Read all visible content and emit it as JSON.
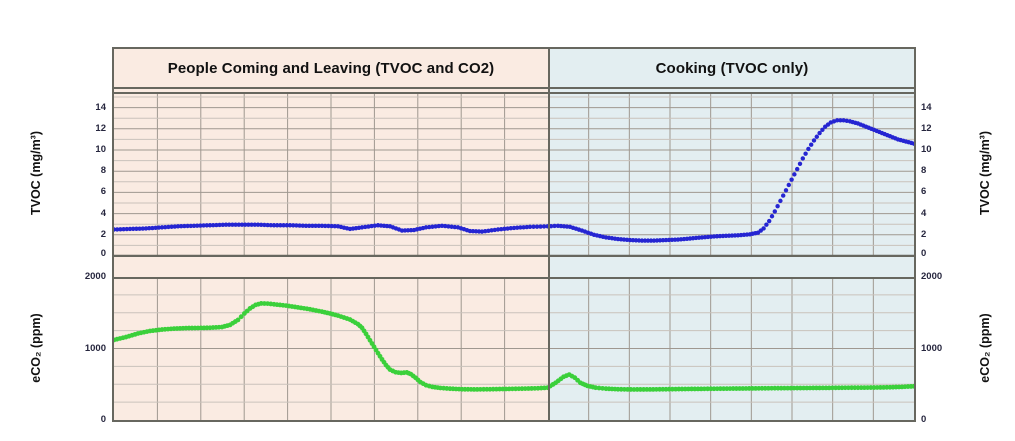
{
  "chart": {
    "regions": [
      {
        "label": "People Coming and Leaving (TVOC and CO2)",
        "bg": "#FAEBE2"
      },
      {
        "label": "Cooking (TVOC only)",
        "bg": "#E3EEF1"
      }
    ],
    "split_percent": 54.25,
    "axes": {
      "tvoc_label_left": "TVOC (mg/m³)",
      "tvoc_label_right": "TVOC (mg/m³)",
      "eco2_label_left": "eCO₂ (ppm)",
      "eco2_label_right": "eCO₂ (ppm)",
      "tvoc_ticks": [
        14,
        12,
        10,
        8,
        6,
        4,
        2,
        0
      ],
      "eco2_ticks": [
        2000,
        1000,
        0
      ]
    },
    "colors": {
      "tvoc_line": "#2525D2",
      "eco2_line": "#3BD03B",
      "border": "#67675F",
      "grid_major": "#9F9890",
      "grid_minor": "#C9C2BB",
      "header_text": "#111111",
      "tick_text": "#26263E"
    }
  },
  "chart_data": [
    {
      "type": "line",
      "title": "TVOC (mg/m³)",
      "ylabel": "TVOC (mg/m³)",
      "ylim": [
        -0.5,
        15.5
      ],
      "ytick_step": 2,
      "grid": "on",
      "x_unit": "percent_of_width",
      "region_annotations": [
        "People Coming and Leaving (TVOC and CO2)",
        "Cooking (TVOC only)"
      ],
      "region_split_x": 54.25,
      "series": [
        {
          "name": "TVOC",
          "points": [
            [
              0,
              2.5
            ],
            [
              2,
              2.55
            ],
            [
              4,
              2.6
            ],
            [
              6,
              2.7
            ],
            [
              8,
              2.8
            ],
            [
              10,
              2.85
            ],
            [
              12,
              2.9
            ],
            [
              14,
              2.95
            ],
            [
              16,
              2.95
            ],
            [
              18,
              2.95
            ],
            [
              20,
              2.9
            ],
            [
              22,
              2.9
            ],
            [
              24,
              2.85
            ],
            [
              26,
              2.85
            ],
            [
              28,
              2.8
            ],
            [
              29.5,
              2.55
            ],
            [
              31,
              2.7
            ],
            [
              33,
              2.9
            ],
            [
              34.5,
              2.8
            ],
            [
              36,
              2.4
            ],
            [
              37.5,
              2.45
            ],
            [
              39,
              2.7
            ],
            [
              41,
              2.85
            ],
            [
              43,
              2.7
            ],
            [
              44.5,
              2.35
            ],
            [
              46,
              2.3
            ],
            [
              48,
              2.5
            ],
            [
              50,
              2.65
            ],
            [
              52,
              2.75
            ],
            [
              54.2,
              2.8
            ],
            [
              55.5,
              2.85
            ],
            [
              57,
              2.75
            ],
            [
              58.5,
              2.4
            ],
            [
              60,
              2.0
            ],
            [
              61.5,
              1.75
            ],
            [
              63,
              1.6
            ],
            [
              64.5,
              1.5
            ],
            [
              66,
              1.45
            ],
            [
              67.5,
              1.45
            ],
            [
              69,
              1.5
            ],
            [
              70.5,
              1.55
            ],
            [
              72,
              1.65
            ],
            [
              73.5,
              1.75
            ],
            [
              75,
              1.85
            ],
            [
              76.5,
              1.9
            ],
            [
              78,
              1.95
            ],
            [
              79.5,
              2.05
            ],
            [
              80.5,
              2.2
            ],
            [
              81.2,
              2.6
            ],
            [
              81.9,
              3.3
            ],
            [
              82.6,
              4.2
            ],
            [
              83.3,
              5.2
            ],
            [
              84,
              6.2
            ],
            [
              84.7,
              7.2
            ],
            [
              85.4,
              8.2
            ],
            [
              86.1,
              9.2
            ],
            [
              86.8,
              10.1
            ],
            [
              87.5,
              10.9
            ],
            [
              88.2,
              11.6
            ],
            [
              88.9,
              12.2
            ],
            [
              89.6,
              12.6
            ],
            [
              90.4,
              12.8
            ],
            [
              91.2,
              12.8
            ],
            [
              92,
              12.7
            ],
            [
              93,
              12.5
            ],
            [
              94,
              12.2
            ],
            [
              95,
              11.9
            ],
            [
              96,
              11.6
            ],
            [
              97,
              11.3
            ],
            [
              98,
              11.0
            ],
            [
              99,
              10.8
            ],
            [
              100,
              10.6
            ]
          ]
        }
      ]
    },
    {
      "type": "line",
      "title": "eCO₂ (ppm)",
      "ylabel": "eCO₂ (ppm)",
      "ylim": [
        0,
        2000
      ],
      "ytick_step": 1000,
      "minor_grid_step": 250,
      "grid": "on",
      "x_unit": "percent_of_width",
      "region_annotations": [
        "People Coming and Leaving (TVOC and CO2)",
        "Cooking (TVOC only)"
      ],
      "region_split_x": 54.25,
      "series": [
        {
          "name": "eCO2",
          "points": [
            [
              0,
              1120
            ],
            [
              1.5,
              1160
            ],
            [
              3,
              1210
            ],
            [
              4.5,
              1245
            ],
            [
              6,
              1265
            ],
            [
              7.5,
              1278
            ],
            [
              9,
              1285
            ],
            [
              10.5,
              1287
            ],
            [
              12,
              1290
            ],
            [
              13.5,
              1300
            ],
            [
              14.5,
              1330
            ],
            [
              15.5,
              1400
            ],
            [
              16.3,
              1490
            ],
            [
              17,
              1560
            ],
            [
              17.7,
              1610
            ],
            [
              18.4,
              1630
            ],
            [
              19.2,
              1628
            ],
            [
              20,
              1618
            ],
            [
              21.5,
              1600
            ],
            [
              23,
              1575
            ],
            [
              24.5,
              1548
            ],
            [
              26,
              1515
            ],
            [
              27,
              1490
            ],
            [
              28,
              1460
            ],
            [
              29.5,
              1405
            ],
            [
              30.5,
              1340
            ],
            [
              31,
              1290
            ],
            [
              31.5,
              1205
            ],
            [
              32,
              1115
            ],
            [
              32.5,
              1025
            ],
            [
              33,
              935
            ],
            [
              33.5,
              848
            ],
            [
              34,
              768
            ],
            [
              34.5,
              705
            ],
            [
              35.2,
              668
            ],
            [
              35.9,
              658
            ],
            [
              36.6,
              665
            ],
            [
              37.1,
              642
            ],
            [
              37.7,
              590
            ],
            [
              38.3,
              530
            ],
            [
              39,
              487
            ],
            [
              39.8,
              463
            ],
            [
              40.8,
              448
            ],
            [
              42,
              438
            ],
            [
              43.5,
              430
            ],
            [
              45,
              428
            ],
            [
              47,
              430
            ],
            [
              49,
              434
            ],
            [
              51,
              438
            ],
            [
              53,
              444
            ],
            [
              54.2,
              452
            ],
            [
              55.2,
              520
            ],
            [
              56.2,
              605
            ],
            [
              56.9,
              635
            ],
            [
              57.6,
              592
            ],
            [
              58.3,
              520
            ],
            [
              59.2,
              477
            ],
            [
              60.2,
              452
            ],
            [
              61.5,
              438
            ],
            [
              63,
              430
            ],
            [
              65,
              427
            ],
            [
              67,
              428
            ],
            [
              69,
              430
            ],
            [
              71,
              433
            ],
            [
              73,
              435
            ],
            [
              75,
              437
            ],
            [
              77,
              439
            ],
            [
              79,
              441
            ],
            [
              81,
              443
            ],
            [
              83,
              445
            ],
            [
              85,
              446
            ],
            [
              87,
              448
            ],
            [
              89,
              449
            ],
            [
              91,
              451
            ],
            [
              93,
              452
            ],
            [
              95,
              454
            ],
            [
              97,
              458
            ],
            [
              98.5,
              463
            ],
            [
              100,
              472
            ]
          ]
        }
      ]
    }
  ]
}
